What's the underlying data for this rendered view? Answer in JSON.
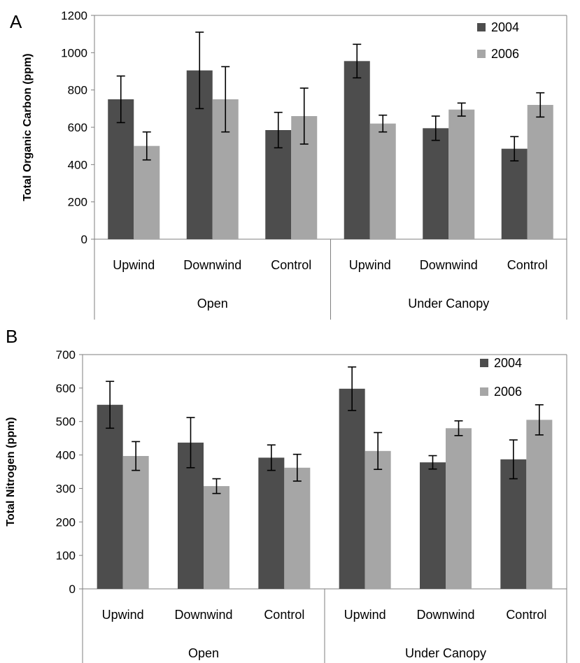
{
  "panels": [
    {
      "label": "A",
      "ylabel": "Total Organic Carbon (ppm)",
      "legend": [
        "2004",
        "2006"
      ]
    },
    {
      "label": "B",
      "ylabel": "Total Nitrogen (ppm)",
      "legend": [
        "2004",
        "2006"
      ]
    }
  ],
  "chart_data": [
    {
      "type": "bar",
      "title": "",
      "ylabel": "Total Organic Carbon (ppm)",
      "xlabel": "",
      "ylim": [
        0,
        1200
      ],
      "yticks": [
        0,
        200,
        400,
        600,
        800,
        1000,
        1200
      ],
      "categories": [
        "Upwind",
        "Downwind",
        "Control",
        "Upwind",
        "Downwind",
        "Control"
      ],
      "groups": [
        {
          "name": "Open",
          "categories": [
            "Upwind",
            "Downwind",
            "Control"
          ]
        },
        {
          "name": "Under Canopy",
          "categories": [
            "Upwind",
            "Downwind",
            "Control"
          ]
        }
      ],
      "series": [
        {
          "name": "2004",
          "color": "#4d4d4d",
          "values": [
            750,
            905,
            585,
            955,
            595,
            485
          ],
          "errors": [
            125,
            205,
            95,
            90,
            65,
            65
          ]
        },
        {
          "name": "2006",
          "color": "#a6a6a6",
          "values": [
            500,
            750,
            660,
            620,
            695,
            720
          ],
          "errors": [
            75,
            175,
            150,
            45,
            35,
            65
          ]
        }
      ],
      "legend_position": "top-right",
      "grid": false
    },
    {
      "type": "bar",
      "title": "",
      "ylabel": "Total Nitrogen (ppm)",
      "xlabel": "",
      "ylim": [
        0,
        700
      ],
      "yticks": [
        0,
        100,
        200,
        300,
        400,
        500,
        600,
        700
      ],
      "categories": [
        "Upwind",
        "Downwind",
        "Control",
        "Upwind",
        "Downwind",
        "Control"
      ],
      "groups": [
        {
          "name": "Open",
          "categories": [
            "Upwind",
            "Downwind",
            "Control"
          ]
        },
        {
          "name": "Under Canopy",
          "categories": [
            "Upwind",
            "Downwind",
            "Control"
          ]
        }
      ],
      "series": [
        {
          "name": "2004",
          "color": "#4d4d4d",
          "values": [
            550,
            437,
            392,
            598,
            378,
            387
          ],
          "errors": [
            70,
            75,
            38,
            65,
            20,
            58
          ]
        },
        {
          "name": "2006",
          "color": "#a6a6a6",
          "values": [
            397,
            307,
            362,
            412,
            480,
            505
          ],
          "errors": [
            43,
            22,
            40,
            55,
            22,
            45
          ]
        }
      ],
      "legend_position": "top-right",
      "grid": false
    }
  ]
}
